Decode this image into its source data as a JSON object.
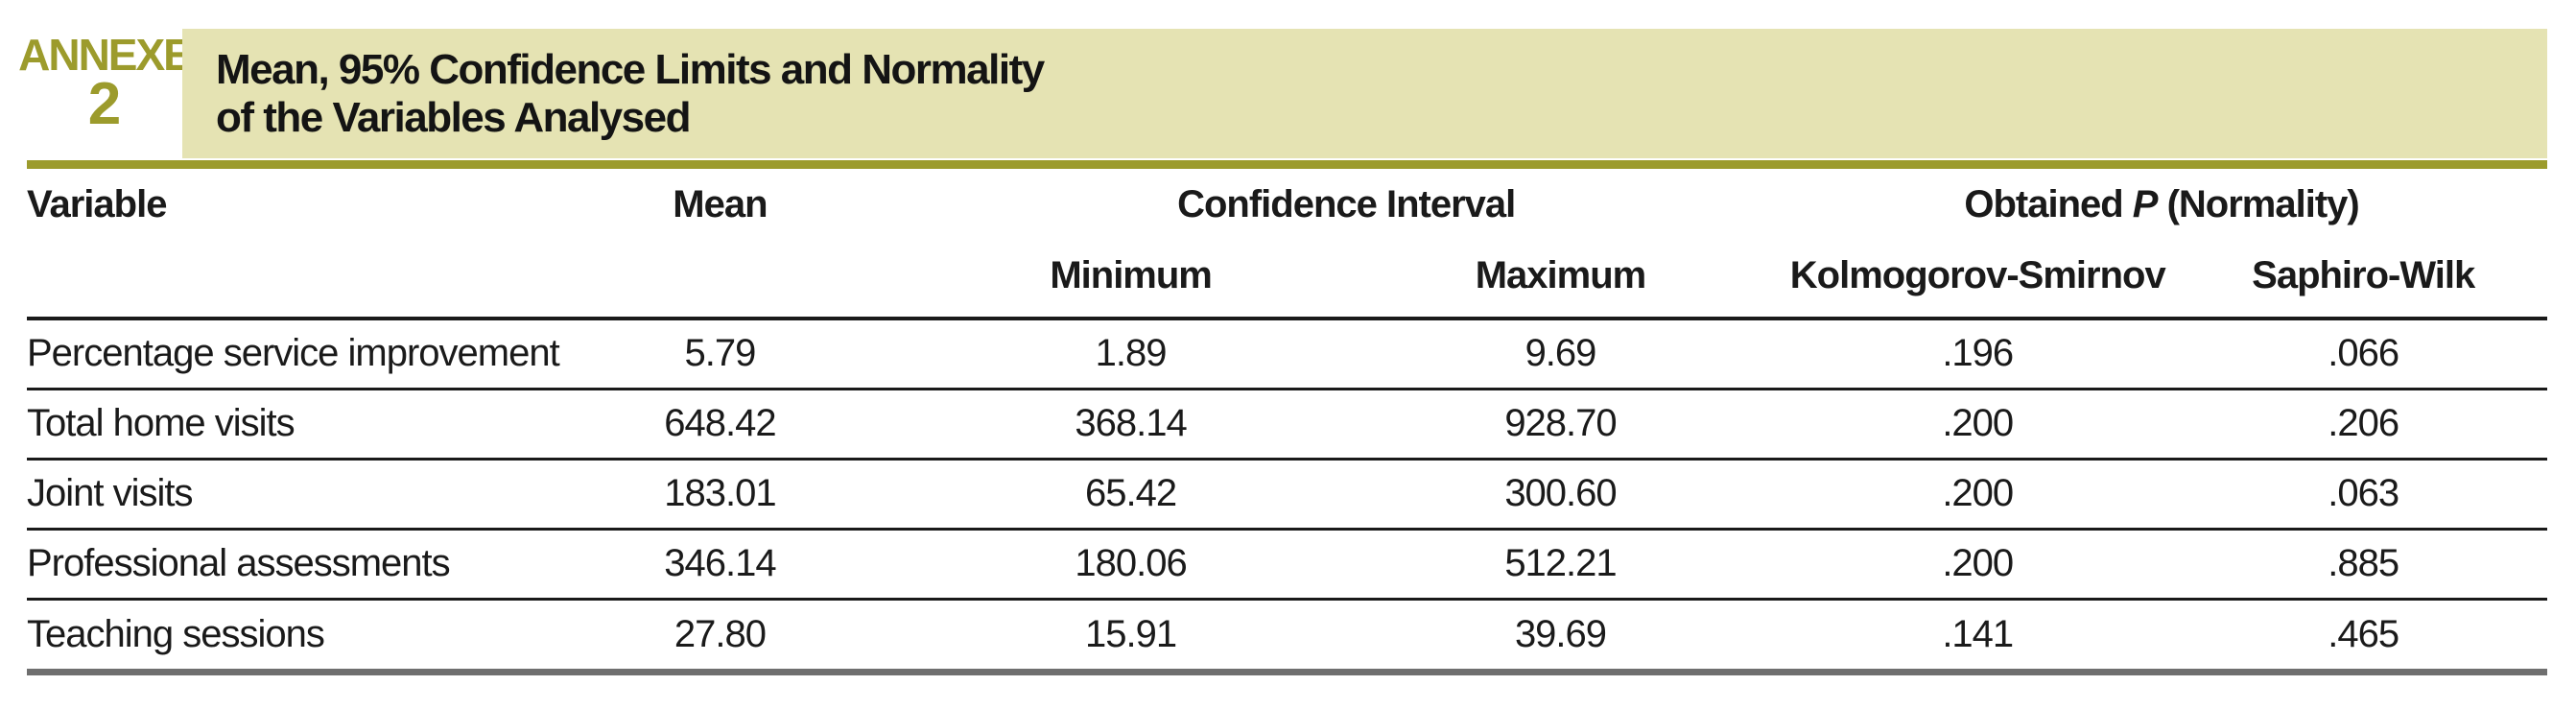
{
  "annexe": {
    "label": "ANNEXE",
    "number": "2"
  },
  "title": {
    "line1": "Mean, 95% Confidence Limits and Normality",
    "line2": "of the Variables Analysed"
  },
  "table": {
    "headers": {
      "variable": "Variable",
      "mean": "Mean",
      "confidence_interval": "Confidence Interval",
      "obtained_prefix": "Obtained ",
      "obtained_p": "P",
      "obtained_suffix": " (Normality)",
      "minimum": "Minimum",
      "maximum": "Maximum",
      "kolmogorov_smirnov": "Kolmogorov-Smirnov",
      "saphiro_wilk": "Saphiro-Wilk"
    },
    "rows": [
      {
        "variable": "Percentage service improvement",
        "mean": "5.79",
        "min": "1.89",
        "max": "9.69",
        "ks": ".196",
        "sw": ".066"
      },
      {
        "variable": "Total home visits",
        "mean": "648.42",
        "min": "368.14",
        "max": "928.70",
        "ks": ".200",
        "sw": ".206"
      },
      {
        "variable": "Joint visits",
        "mean": "183.01",
        "min": "65.42",
        "max": "300.60",
        "ks": ".200",
        "sw": ".063"
      },
      {
        "variable": "Professional assessments",
        "mean": "346.14",
        "min": "180.06",
        "max": "512.21",
        "ks": ".200",
        "sw": ".885"
      },
      {
        "variable": "Teaching sessions",
        "mean": "27.80",
        "min": "15.91",
        "max": "39.69",
        "ks": ".141",
        "sw": ".465"
      }
    ]
  },
  "colors": {
    "olive": "#9c9b2c",
    "band": "#e5e3b3",
    "ink": "#1a1a1a",
    "bar_gray": "#6f6f6f"
  }
}
